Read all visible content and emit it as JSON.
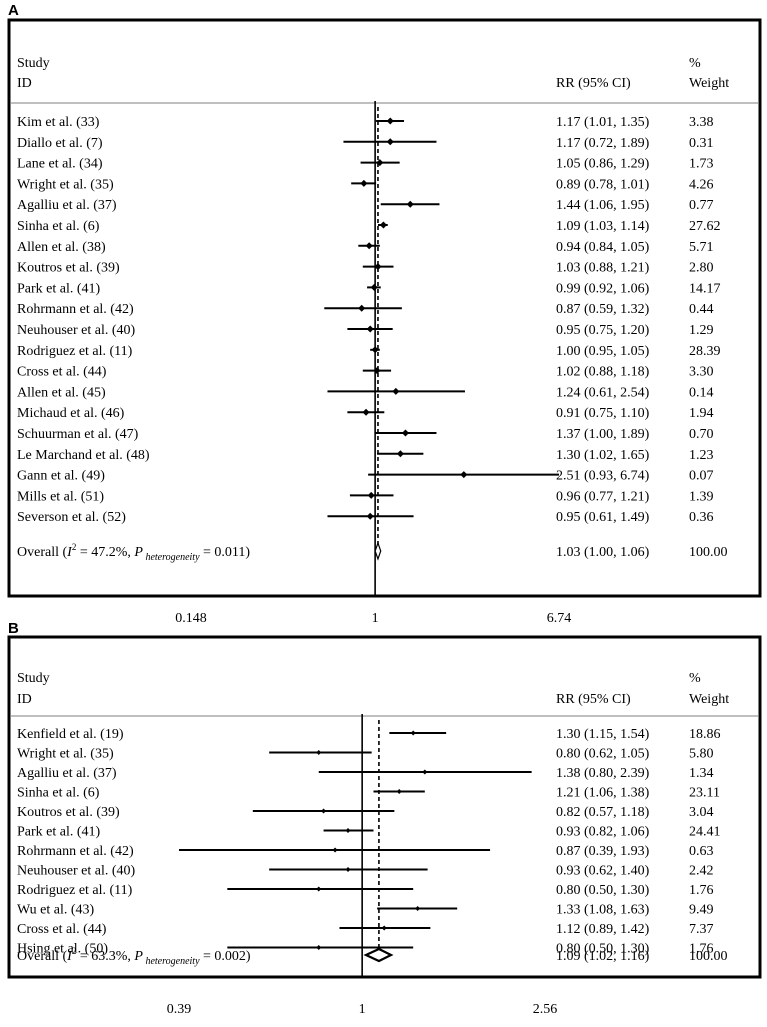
{
  "chart_data": [
    {
      "type": "forest",
      "panel_label": "A",
      "headers": {
        "study": "Study",
        "id": "ID",
        "effect": "RR (95% CI)",
        "pct": "%",
        "weight": "Weight"
      },
      "scale": "log",
      "xlim": [
        0.148,
        6.74
      ],
      "null_value": 1,
      "overall_line": 1.03,
      "ticks": [
        {
          "value": 0.148,
          "label": "0.148"
        },
        {
          "value": 1,
          "label": "1"
        },
        {
          "value": 6.74,
          "label": "6.74"
        }
      ],
      "studies": [
        {
          "name": "Kim et al. (33)",
          "rr": 1.17,
          "lo": 1.01,
          "hi": 1.35,
          "ci_text": "1.17 (1.01, 1.35)",
          "weight": "3.38"
        },
        {
          "name": "Diallo et al. (7)",
          "rr": 1.17,
          "lo": 0.72,
          "hi": 1.89,
          "ci_text": "1.17 (0.72, 1.89)",
          "weight": "0.31"
        },
        {
          "name": "Lane et al. (34)",
          "rr": 1.05,
          "lo": 0.86,
          "hi": 1.29,
          "ci_text": "1.05 (0.86, 1.29)",
          "weight": "1.73"
        },
        {
          "name": "Wright et al. (35)",
          "rr": 0.89,
          "lo": 0.78,
          "hi": 1.01,
          "ci_text": "0.89 (0.78, 1.01)",
          "weight": "4.26"
        },
        {
          "name": "Agalliu et al. (37)",
          "rr": 1.44,
          "lo": 1.06,
          "hi": 1.95,
          "ci_text": "1.44 (1.06, 1.95)",
          "weight": "0.77"
        },
        {
          "name": "Sinha et al. (6)",
          "rr": 1.09,
          "lo": 1.03,
          "hi": 1.14,
          "ci_text": "1.09 (1.03, 1.14)",
          "weight": "27.62"
        },
        {
          "name": "Allen et al. (38)",
          "rr": 0.94,
          "lo": 0.84,
          "hi": 1.05,
          "ci_text": "0.94 (0.84, 1.05)",
          "weight": "5.71"
        },
        {
          "name": "Koutros et al. (39)",
          "rr": 1.03,
          "lo": 0.88,
          "hi": 1.21,
          "ci_text": "1.03 (0.88, 1.21)",
          "weight": "2.80"
        },
        {
          "name": "Park et al. (41)",
          "rr": 0.99,
          "lo": 0.92,
          "hi": 1.06,
          "ci_text": "0.99 (0.92, 1.06)",
          "weight": "14.17"
        },
        {
          "name": "Rohrmann et al. (42)",
          "rr": 0.87,
          "lo": 0.59,
          "hi": 1.32,
          "ci_text": "0.87 (0.59, 1.32)",
          "weight": "0.44"
        },
        {
          "name": "Neuhouser et al. (40)",
          "rr": 0.95,
          "lo": 0.75,
          "hi": 1.2,
          "ci_text": "0.95 (0.75, 1.20)",
          "weight": "1.29"
        },
        {
          "name": "Rodriguez et al. (11)",
          "rr": 1.0,
          "lo": 0.95,
          "hi": 1.05,
          "ci_text": "1.00 (0.95, 1.05)",
          "weight": "28.39"
        },
        {
          "name": "Cross et al. (44)",
          "rr": 1.02,
          "lo": 0.88,
          "hi": 1.18,
          "ci_text": "1.02 (0.88, 1.18)",
          "weight": "3.30"
        },
        {
          "name": "Allen et al. (45)",
          "rr": 1.24,
          "lo": 0.61,
          "hi": 2.54,
          "ci_text": "1.24 (0.61, 2.54)",
          "weight": "0.14"
        },
        {
          "name": "Michaud et al. (46)",
          "rr": 0.91,
          "lo": 0.75,
          "hi": 1.1,
          "ci_text": "0.91 (0.75, 1.10)",
          "weight": "1.94"
        },
        {
          "name": "Schuurman et al. (47)",
          "rr": 1.37,
          "lo": 1.0,
          "hi": 1.89,
          "ci_text": "1.37 (1.00, 1.89)",
          "weight": "0.70"
        },
        {
          "name": "Le Marchand et al. (48)",
          "rr": 1.3,
          "lo": 1.02,
          "hi": 1.65,
          "ci_text": "1.30 (1.02, 1.65)",
          "weight": "1.23"
        },
        {
          "name": "Gann et al. (49)",
          "rr": 2.51,
          "lo": 0.93,
          "hi": 6.74,
          "ci_text": "2.51 (0.93, 6.74)",
          "weight": "0.07"
        },
        {
          "name": "Mills et al. (51)",
          "rr": 0.96,
          "lo": 0.77,
          "hi": 1.21,
          "ci_text": "0.96 (0.77, 1.21)",
          "weight": "1.39"
        },
        {
          "name": "Severson et al. (52)",
          "rr": 0.95,
          "lo": 0.61,
          "hi": 1.49,
          "ci_text": "0.95 (0.61, 1.49)",
          "weight": "0.36"
        }
      ],
      "overall": {
        "label_prefix": "Overall  (",
        "i2_symbol": "I",
        "i2_sup": "2",
        "i2_value": " = 47.2%, ",
        "p_symbol": "P",
        "p_sub": " heterogeneity",
        "p_value": " = 0.011)",
        "rr": 1.03,
        "lo": 1.0,
        "hi": 1.06,
        "ci_text": "1.03 (1.00, 1.06)",
        "weight": "100.00"
      }
    },
    {
      "type": "forest",
      "panel_label": "B",
      "headers": {
        "study": "Study",
        "id": "ID",
        "effect": "RR (95% CI)",
        "pct": "%",
        "weight": "Weight"
      },
      "scale": "log",
      "xlim": [
        0.39,
        2.56
      ],
      "null_value": 1,
      "overall_line": 1.09,
      "ticks": [
        {
          "value": 0.39,
          "label": "0.39"
        },
        {
          "value": 1,
          "label": "1"
        },
        {
          "value": 2.56,
          "label": "2.56"
        }
      ],
      "studies": [
        {
          "name": "Kenfield et al. (19)",
          "rr": 1.3,
          "lo": 1.15,
          "hi": 1.54,
          "ci_text": "1.30 (1.15, 1.54)",
          "weight": "18.86"
        },
        {
          "name": "Wright et al. (35)",
          "rr": 0.8,
          "lo": 0.62,
          "hi": 1.05,
          "ci_text": "0.80 (0.62, 1.05)",
          "weight": "5.80"
        },
        {
          "name": "Agalliu et al. (37)",
          "rr": 1.38,
          "lo": 0.8,
          "hi": 2.39,
          "ci_text": "1.38 (0.80, 2.39)",
          "weight": "1.34"
        },
        {
          "name": "Sinha et al. (6)",
          "rr": 1.21,
          "lo": 1.06,
          "hi": 1.38,
          "ci_text": "1.21 (1.06, 1.38)",
          "weight": "23.11"
        },
        {
          "name": "Koutros et al. (39)",
          "rr": 0.82,
          "lo": 0.57,
          "hi": 1.18,
          "ci_text": "0.82 (0.57, 1.18)",
          "weight": "3.04"
        },
        {
          "name": "Park et al. (41)",
          "rr": 0.93,
          "lo": 0.82,
          "hi": 1.06,
          "ci_text": "0.93 (0.82, 1.06)",
          "weight": "24.41"
        },
        {
          "name": "Rohrmann et al. (42)",
          "rr": 0.87,
          "lo": 0.39,
          "hi": 1.93,
          "ci_text": "0.87 (0.39, 1.93)",
          "weight": "0.63"
        },
        {
          "name": "Neuhouser et al. (40)",
          "rr": 0.93,
          "lo": 0.62,
          "hi": 1.4,
          "ci_text": "0.93 (0.62, 1.40)",
          "weight": "2.42"
        },
        {
          "name": "Rodriguez et al. (11)",
          "rr": 0.8,
          "lo": 0.5,
          "hi": 1.3,
          "ci_text": "0.80 (0.50, 1.30)",
          "weight": "1.76"
        },
        {
          "name": "Wu et al. (43)",
          "rr": 1.33,
          "lo": 1.08,
          "hi": 1.63,
          "ci_text": "1.33 (1.08, 1.63)",
          "weight": "9.49"
        },
        {
          "name": "Cross et al. (44)",
          "rr": 1.12,
          "lo": 0.89,
          "hi": 1.42,
          "ci_text": "1.12 (0.89, 1.42)",
          "weight": "7.37"
        },
        {
          "name": "Hsing et al. (50)",
          "rr": 0.8,
          "lo": 0.5,
          "hi": 1.3,
          "ci_text": "0.80 (0.50, 1.30)",
          "weight": "1.76"
        }
      ],
      "overall": {
        "label_prefix": "Overall  (",
        "i2_symbol": "I",
        "i2_sup": "2",
        "i2_value": " = 63.3%, ",
        "p_symbol": "P",
        "p_sub": " heterogeneity",
        "p_value": " = 0.002)",
        "rr": 1.09,
        "lo": 1.02,
        "hi": 1.16,
        "ci_text": "1.09 (1.02, 1.16)",
        "weight": "100.00"
      }
    }
  ]
}
